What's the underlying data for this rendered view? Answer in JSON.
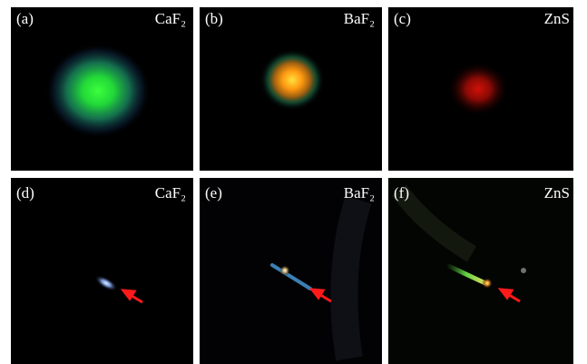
{
  "panels": [
    {
      "label": "(a)",
      "material": "CaF₂"
    },
    {
      "label": "(b)",
      "material": "BaF₂"
    },
    {
      "label": "(c)",
      "material": "ZnS"
    },
    {
      "label": "(d)",
      "material": "CaF₂"
    },
    {
      "label": "(e)",
      "material": "BaF₂"
    },
    {
      "label": "(f)",
      "material": "ZnS"
    }
  ]
}
